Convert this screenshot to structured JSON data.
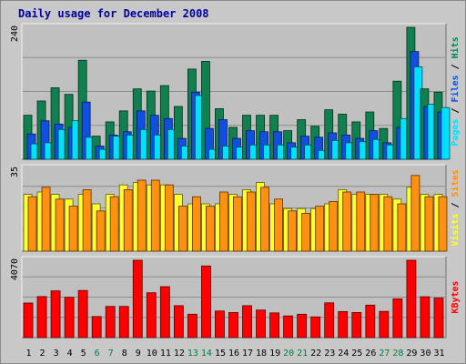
{
  "chart_data": {
    "title": "Daily usage for December 2008",
    "type": "bar",
    "categories": [
      "1",
      "2",
      "3",
      "4",
      "5",
      "6",
      "7",
      "8",
      "9",
      "10",
      "11",
      "12",
      "13",
      "14",
      "15",
      "16",
      "17",
      "18",
      "19",
      "20",
      "21",
      "22",
      "23",
      "24",
      "25",
      "26",
      "27",
      "28",
      "29",
      "30",
      "31"
    ],
    "weekend_days": [
      "6",
      "7",
      "13",
      "14",
      "20",
      "21",
      "27",
      "28"
    ],
    "panels": [
      {
        "name": "pages-files-hits",
        "ymax_label": "240",
        "ylim": [
          0,
          240
        ],
        "legend": [
          {
            "label": "Pages",
            "color": "#00e0ff"
          },
          {
            "label": "Files",
            "color": "#1050e0"
          },
          {
            "label": "Hits",
            "color": "#108050"
          }
        ],
        "series": [
          {
            "name": "Hits",
            "color": "#108050",
            "values": [
              80,
              106,
              130,
              118,
              180,
              42,
              68,
              88,
              128,
              124,
              134,
              96,
              164,
              178,
              92,
              58,
              80,
              80,
              80,
              52,
              72,
              60,
              90,
              82,
              68,
              86,
              56,
              142,
              240,
              128,
              122
            ]
          },
          {
            "name": "Files",
            "color": "#1050e0",
            "values": [
              46,
              70,
              64,
              58,
              104,
              24,
              44,
              50,
              88,
              80,
              74,
              38,
              122,
              56,
              72,
              38,
              52,
              50,
              50,
              30,
              42,
              40,
              48,
              44,
              38,
              52,
              30,
              58,
              196,
              96,
              86
            ]
          },
          {
            "name": "Pages",
            "color": "#00e0ff",
            "values": [
              28,
              30,
              54,
              70,
              40,
              18,
              42,
              44,
              54,
              44,
              54,
              24,
              116,
              18,
              24,
              22,
              26,
              26,
              26,
              22,
              26,
              16,
              34,
              30,
              32,
              36,
              26,
              74,
              168,
              100,
              94
            ]
          }
        ]
      },
      {
        "name": "visits-sites",
        "ymax_label": "35",
        "ylim": [
          0,
          35
        ],
        "legend": [
          {
            "label": "Visits",
            "color": "#ffff30"
          },
          {
            "label": "Sites",
            "color": "#ff9010"
          }
        ],
        "series": [
          {
            "name": "Visits",
            "color": "#ffff30",
            "values": [
              24,
              25,
              24,
              22,
              24,
              20,
              24,
              28,
              29,
              28,
              28,
              24,
              20,
              20,
              20,
              24,
              26,
              29,
              20,
              18,
              18,
              18,
              20,
              26,
              24,
              24,
              24,
              22,
              27,
              24,
              24
            ]
          },
          {
            "name": "Sites",
            "color": "#ff9010",
            "values": [
              23,
              27,
              22,
              19,
              26,
              17,
              23,
              26,
              30,
              30,
              28,
              19,
              23,
              19,
              25,
              23,
              25,
              27,
              22,
              17,
              16,
              19,
              21,
              25,
              25,
              24,
              23,
              20,
              32,
              23,
              23
            ]
          }
        ]
      },
      {
        "name": "kbytes",
        "ymax_label": "4070",
        "ylim": [
          0,
          4070
        ],
        "legend": [
          {
            "label": "KBytes",
            "color": "#ff0000"
          }
        ],
        "series": [
          {
            "name": "KBytes",
            "color": "#ff0000",
            "values": [
              1820,
              2160,
              2460,
              2120,
              2480,
              1110,
              1640,
              1640,
              4070,
              2360,
              2680,
              1680,
              1230,
              3770,
              1400,
              1320,
              1680,
              1450,
              1300,
              1140,
              1230,
              1090,
              1830,
              1370,
              1320,
              1710,
              1380,
              2040,
              4070,
              2150,
              2080
            ]
          }
        ]
      }
    ],
    "grid": true
  }
}
